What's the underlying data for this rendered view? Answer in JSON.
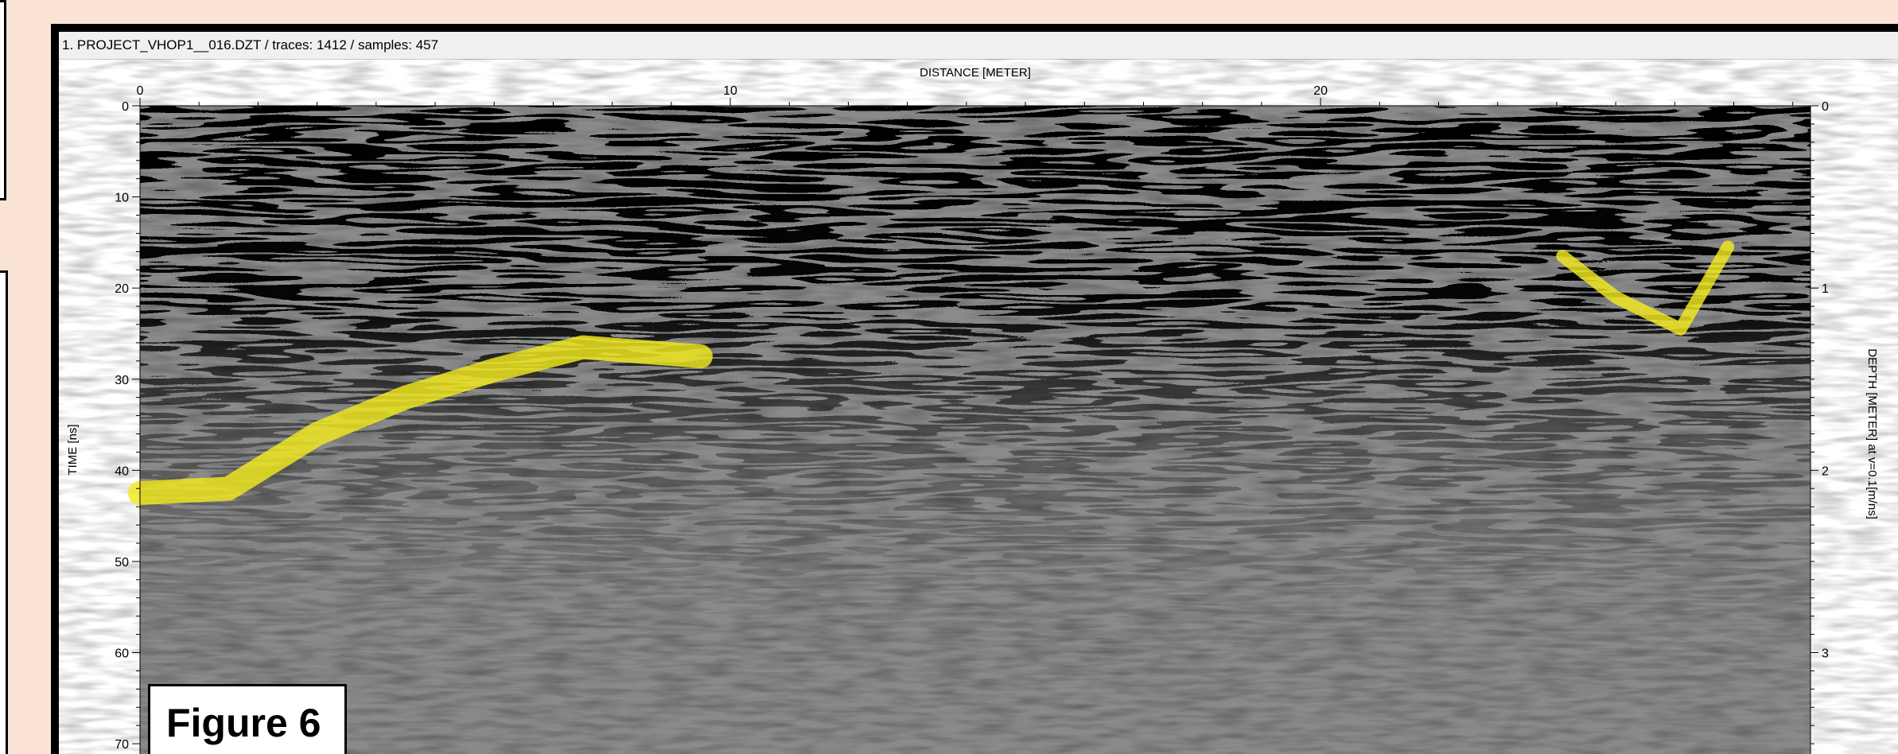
{
  "window": {
    "title": "1. PROJECT_VHOP1__016.DZT / traces: 1412 / samples: 457"
  },
  "figure_label": "Figure 6",
  "colors": {
    "page_background": "#fbe3d5",
    "frame": "#000000",
    "highlight": "#f2ea1e"
  },
  "chart_data": {
    "type": "heatmap",
    "xlabel": "DISTANCE [METER]",
    "ylabel": "TIME [ns]",
    "y2label": "DEPTH [METER] at v=0.1[m/ns]",
    "xlim": [
      0,
      28.3
    ],
    "ylim": [
      0,
      72
    ],
    "y2lim": [
      0,
      3.6
    ],
    "x_ticks": [
      0,
      10,
      20
    ],
    "y_ticks": [
      0,
      10,
      20,
      30,
      40,
      50,
      60,
      70
    ],
    "y2_ticks": [
      0,
      1,
      2,
      3
    ],
    "grid": false,
    "highlights": [
      {
        "x": [
          0.0,
          1.5,
          3.0,
          4.5,
          6.0,
          7.5,
          9.5
        ],
        "y": [
          42.5,
          42.0,
          36.0,
          32.0,
          29.0,
          26.5,
          27.5
        ]
      },
      {
        "x": [
          24.1,
          25.0,
          26.1,
          26.9
        ],
        "y": [
          16.5,
          21.0,
          24.5,
          15.5
        ]
      }
    ]
  }
}
